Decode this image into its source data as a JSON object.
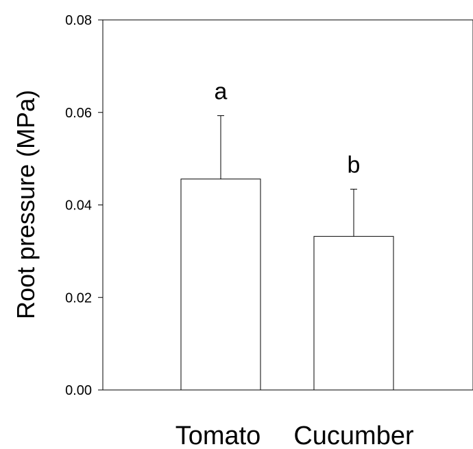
{
  "chart_data": {
    "type": "bar",
    "title": "",
    "xlabel": "",
    "ylabel": "Root pressure (MPa)",
    "ylim": [
      0,
      0.08
    ],
    "yticks": [
      "0.00",
      "0.02",
      "0.04",
      "0.06",
      "0.08"
    ],
    "ytick_values": [
      0,
      0.02,
      0.04,
      0.06,
      0.08
    ],
    "categories": [
      "Tomato",
      "Cucumber"
    ],
    "values": [
      0.0456,
      0.0332
    ],
    "errors": [
      0.0137,
      0.0102
    ],
    "significance": [
      "a",
      "b"
    ],
    "grid": false,
    "legend": "none",
    "colors": {
      "bar_fill": "#ffffff",
      "bar_stroke": "#000000",
      "axis": "#000000"
    }
  }
}
